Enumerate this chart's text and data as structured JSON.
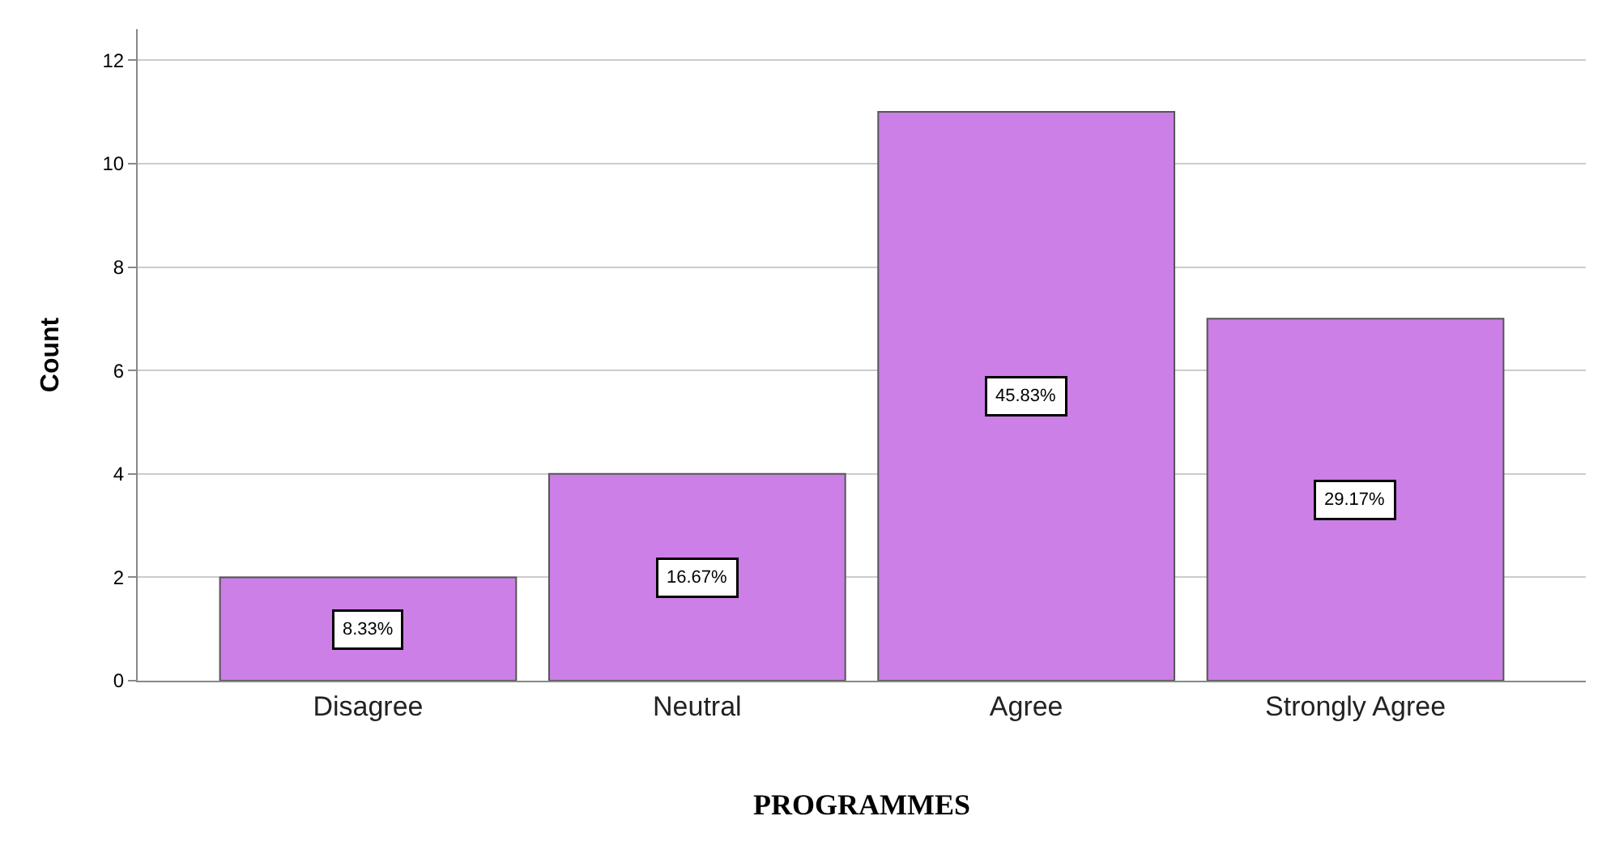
{
  "chart_data": {
    "type": "bar",
    "xlabel": "PROGRAMMES",
    "ylabel": "Count",
    "categories": [
      "Disagree",
      "Neutral",
      "Agree",
      "Strongly Agree"
    ],
    "values": [
      2,
      4,
      11,
      7
    ],
    "annotations": [
      "8.33%",
      "16.67%",
      "45.83%",
      "29.17%"
    ],
    "color": "#cc7fe6",
    "ylim": [
      0,
      12.6
    ],
    "yticks": [
      0,
      2,
      4,
      6,
      8,
      10,
      12
    ],
    "grid": "y"
  }
}
